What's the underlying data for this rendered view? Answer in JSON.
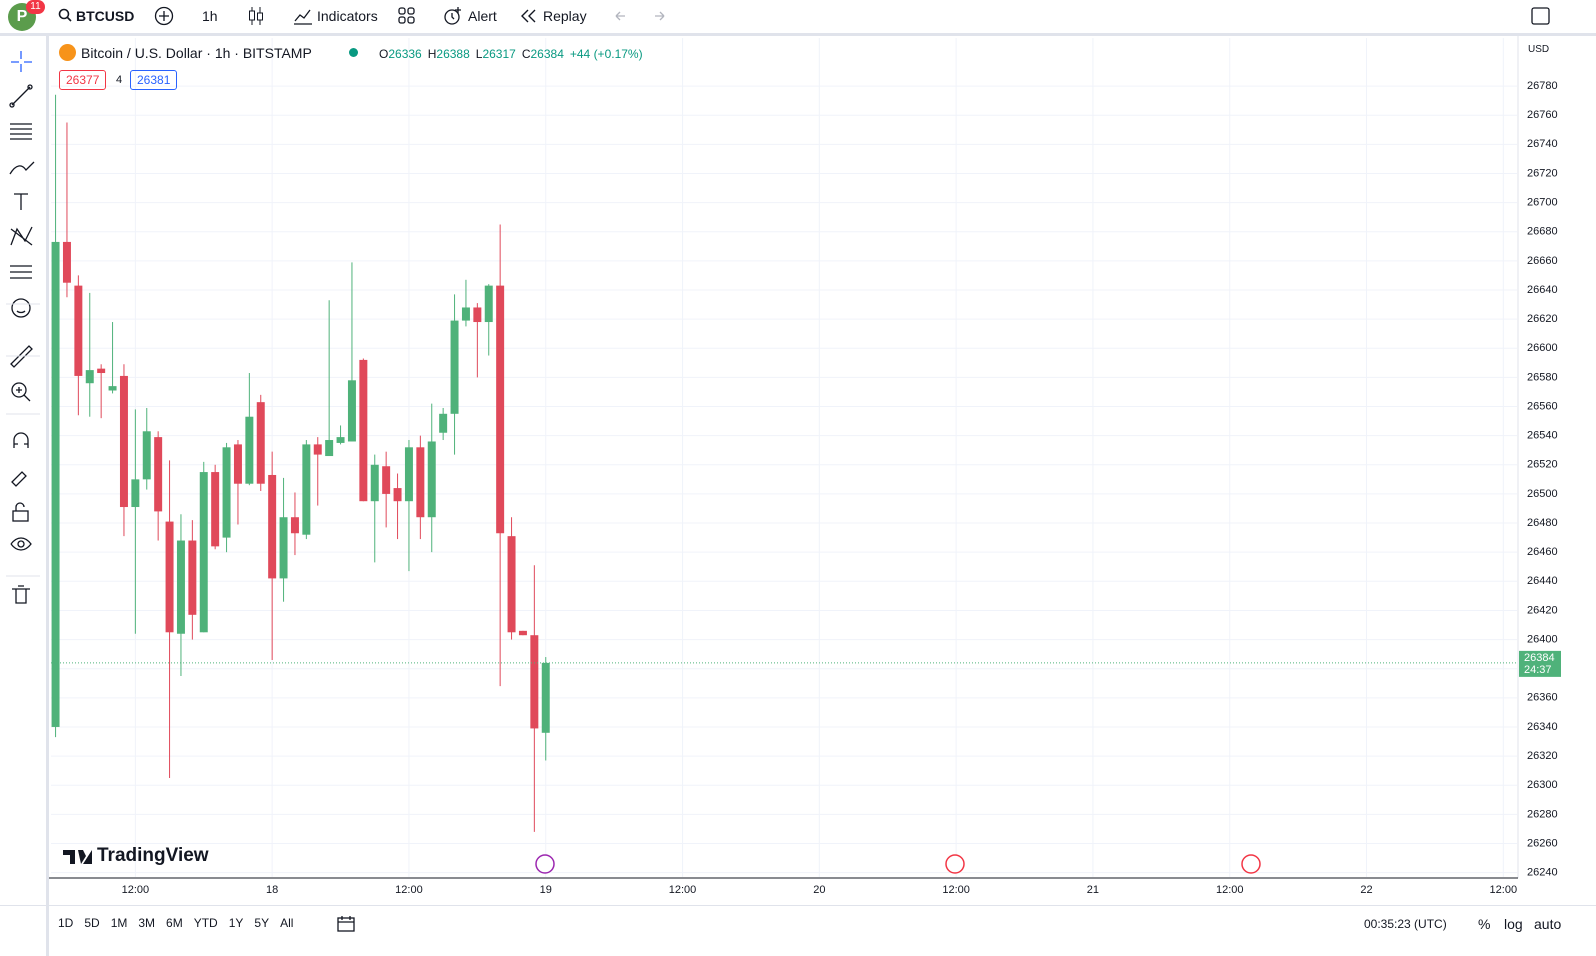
{
  "toolbar": {
    "avatar": "P",
    "badge": "11",
    "symbol": "BTCUSD",
    "interval": "1h",
    "indicators": "Indicators",
    "alert": "Alert",
    "replay": "Replay"
  },
  "legend": {
    "title": "Bitcoin / U.S. Dollar · 1h · BITSTAMP",
    "fields": [
      "O",
      "H",
      "L",
      "C"
    ],
    "change": "+44 (+0.17%)",
    "bid": "26377",
    "spread": "4",
    "ask": "26381"
  },
  "currency": "USD",
  "countdown": "24:37",
  "logo": "TradingView",
  "ranges": [
    "1D",
    "5D",
    "1M",
    "3M",
    "6M",
    "YTD",
    "1Y",
    "5Y",
    "All"
  ],
  "status": {
    "clock": "00:35:23 (UTC)",
    "percent": "%",
    "log": "log",
    "auto": "auto"
  },
  "chart_data": {
    "type": "candlestick",
    "up_color": "#4fb27a",
    "down_color": "#e0495a",
    "grid": true,
    "open": [
      26340,
      26673,
      26643,
      26576,
      26586,
      26571,
      26581,
      26491,
      26510,
      26539,
      26481,
      26404,
      26468,
      26405,
      26515,
      26470,
      26534,
      26507,
      26563,
      26513,
      26442,
      26484,
      26472,
      26534,
      26526,
      26535,
      26536,
      26592,
      26495,
      26519,
      26504,
      26495,
      26532,
      26484,
      26542,
      26555,
      26619,
      26628,
      26618,
      26643,
      26471,
      26406,
      26403,
      26336
    ],
    "high": [
      26774,
      26755,
      26650,
      26638,
      26589,
      26618,
      26589,
      26558,
      26559,
      26543,
      26523,
      26486,
      26482,
      26522,
      26520,
      26535,
      26537,
      26583,
      26568,
      26529,
      26511,
      26501,
      26537,
      26539,
      26633,
      26547,
      26659,
      26593,
      26527,
      26529,
      26514,
      26537,
      26540,
      26562,
      26559,
      26637,
      26647,
      26631,
      26644,
      26685,
      26484,
      26406,
      26451,
      26388
    ],
    "low": [
      26333,
      26635,
      26554,
      26553,
      26552,
      26569,
      26471,
      26404,
      26503,
      26468,
      26305,
      26375,
      26400,
      26405,
      26462,
      26460,
      26479,
      26506,
      26502,
      26386,
      26426,
      26458,
      26469,
      26492,
      26526,
      26534,
      26536,
      26495,
      26453,
      26477,
      26469,
      26447,
      26469,
      26460,
      26537,
      26527,
      26615,
      26580,
      26595,
      26368,
      26400,
      26403,
      26268,
      26317
    ],
    "close": [
      26673,
      26645,
      26581,
      26585,
      26583,
      26574,
      26491,
      26510,
      26543,
      26488,
      26405,
      26468,
      26417,
      26515,
      26464,
      26532,
      26507,
      26553,
      26507,
      26442,
      26484,
      26473,
      26534,
      26527,
      26537,
      26539,
      26578,
      26495,
      26520,
      26500,
      26495,
      26532,
      26484,
      26536,
      26555,
      26619,
      26628,
      26618,
      26643,
      26473,
      26405,
      26403,
      26339,
      26384
    ],
    "xlim": [
      -0.4,
      128.2
    ],
    "xticks": [
      {
        "value": 7,
        "label": "12:00"
      },
      {
        "value": 19,
        "label": "18"
      },
      {
        "value": 31,
        "label": "12:00"
      },
      {
        "value": 43,
        "label": "19"
      },
      {
        "value": 55,
        "label": "12:00"
      },
      {
        "value": 67,
        "label": "20"
      },
      {
        "value": 79,
        "label": "12:00"
      },
      {
        "value": 91,
        "label": "21"
      },
      {
        "value": 103,
        "label": "12:00"
      },
      {
        "value": 115,
        "label": "22"
      },
      {
        "value": 127,
        "label": "12:00"
      }
    ],
    "ylim": [
      26237,
      26813
    ],
    "yticks": [
      26240,
      26260,
      26280,
      26300,
      26320,
      26340,
      26360,
      26380,
      26400,
      26420,
      26440,
      26460,
      26480,
      26500,
      26520,
      26540,
      26560,
      26580,
      26600,
      26620,
      26640,
      26660,
      26680,
      26700,
      26720,
      26740,
      26760,
      26780
    ]
  }
}
